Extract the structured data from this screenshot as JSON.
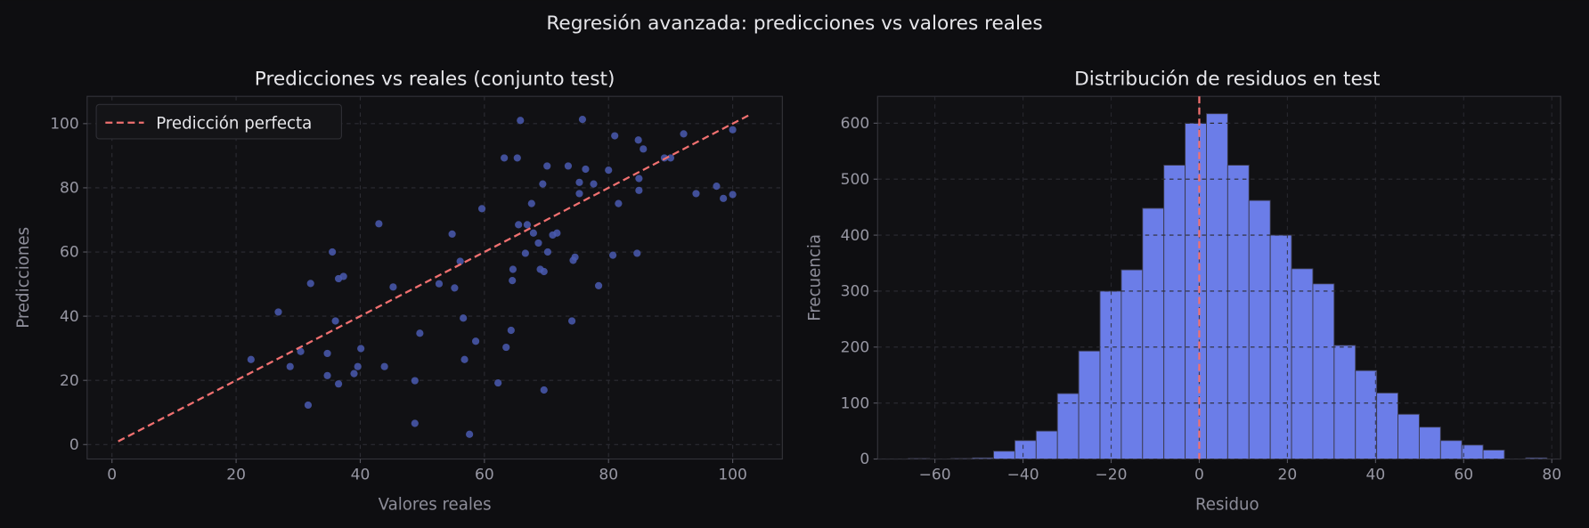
{
  "suptitle": "Regresión avanzada: predicciones vs valores reales",
  "colors": {
    "background": "#0e0e11",
    "axes": "#111114",
    "points": "#4a5bb0",
    "bars": "#6b7de8",
    "bar_edge": "#3b3b4d",
    "reference_line": "#f07070",
    "grid": "#2c2c33"
  },
  "chart_data": [
    {
      "type": "scatter",
      "title": "Predicciones vs reales (conjunto test)",
      "xlabel": "Valores reales",
      "ylabel": "Predicciones",
      "xlim": [
        -4,
        108
      ],
      "ylim": [
        -4.5,
        108.5
      ],
      "xticks": [
        "0",
        "20",
        "40",
        "60",
        "80",
        "100"
      ],
      "yticks": [
        "0",
        "20",
        "40",
        "60",
        "80",
        "100"
      ],
      "grid": true,
      "legend": {
        "placement": "top-left",
        "entries": [
          "Predicción perfecta"
        ]
      },
      "reference_line": {
        "name": "Predicción perfecta",
        "from": [
          1,
          1
        ],
        "to": [
          103,
          103
        ],
        "style": "dashed"
      },
      "points": [
        [
          22.4,
          26.5
        ],
        [
          26.8,
          41.3
        ],
        [
          28.7,
          24.3
        ],
        [
          30.4,
          29.0
        ],
        [
          31.6,
          12.3
        ],
        [
          32.0,
          50.2
        ],
        [
          34.7,
          21.5
        ],
        [
          34.7,
          28.4
        ],
        [
          35.5,
          60.0
        ],
        [
          36.0,
          38.5
        ],
        [
          36.5,
          51.7
        ],
        [
          37.3,
          52.4
        ],
        [
          36.5,
          18.9
        ],
        [
          39.0,
          22.1
        ],
        [
          40.1,
          29.9
        ],
        [
          39.6,
          24.3
        ],
        [
          43.0,
          68.8
        ],
        [
          43.9,
          24.3
        ],
        [
          45.3,
          49.1
        ],
        [
          48.8,
          19.9
        ],
        [
          48.8,
          6.6
        ],
        [
          49.6,
          34.7
        ],
        [
          52.7,
          50.1
        ],
        [
          54.8,
          65.6
        ],
        [
          55.2,
          48.8
        ],
        [
          56.1,
          57.1
        ],
        [
          56.6,
          39.4
        ],
        [
          56.8,
          26.5
        ],
        [
          57.6,
          3.2
        ],
        [
          58.6,
          32.2
        ],
        [
          59.6,
          73.5
        ],
        [
          62.2,
          19.2
        ],
        [
          63.2,
          89.3
        ],
        [
          63.5,
          30.3
        ],
        [
          64.3,
          35.6
        ],
        [
          64.5,
          51.1
        ],
        [
          64.6,
          54.6
        ],
        [
          65.3,
          89.3
        ],
        [
          65.5,
          68.5
        ],
        [
          65.8,
          101.0
        ],
        [
          66.6,
          59.6
        ],
        [
          66.9,
          68.5
        ],
        [
          67.6,
          75.1
        ],
        [
          67.9,
          65.9
        ],
        [
          68.7,
          62.8
        ],
        [
          69.0,
          54.6
        ],
        [
          69.4,
          81.2
        ],
        [
          69.6,
          53.9
        ],
        [
          69.6,
          17.0
        ],
        [
          70.1,
          86.8
        ],
        [
          70.2,
          60.0
        ],
        [
          71.0,
          65.3
        ],
        [
          71.7,
          65.9
        ],
        [
          73.5,
          86.8
        ],
        [
          74.1,
          38.5
        ],
        [
          74.3,
          57.4
        ],
        [
          74.6,
          58.4
        ],
        [
          75.3,
          78.2
        ],
        [
          75.3,
          81.7
        ],
        [
          75.8,
          101.3
        ],
        [
          76.3,
          85.8
        ],
        [
          77.6,
          81.2
        ],
        [
          78.4,
          49.5
        ],
        [
          80.0,
          85.5
        ],
        [
          80.7,
          59.0
        ],
        [
          81.0,
          96.2
        ],
        [
          81.6,
          75.1
        ],
        [
          84.6,
          59.6
        ],
        [
          84.8,
          94.9
        ],
        [
          84.9,
          82.9
        ],
        [
          84.9,
          79.2
        ],
        [
          85.6,
          92.1
        ],
        [
          89.0,
          89.3
        ],
        [
          90.0,
          89.3
        ],
        [
          92.1,
          96.8
        ],
        [
          94.1,
          78.2
        ],
        [
          97.4,
          80.5
        ],
        [
          98.5,
          76.7
        ],
        [
          100.0,
          98.1
        ],
        [
          100.0,
          77.9
        ]
      ]
    },
    {
      "type": "bar",
      "subtype": "histogram",
      "title": "Distribución de residuos en test",
      "xlabel": "Residuo",
      "ylabel": "Frecuencia",
      "xlim": [
        -73,
        82
      ],
      "ylim": [
        0,
        648
      ],
      "xticks": [
        "−60",
        "−40",
        "−20",
        "0",
        "20",
        "40",
        "60",
        "80"
      ],
      "yticks": [
        "0",
        "100",
        "200",
        "300",
        "400",
        "500",
        "600"
      ],
      "grid": true,
      "bin_start": -66,
      "bin_width": 4.83,
      "counts": [
        1,
        0,
        1,
        2,
        14,
        33,
        50,
        117,
        193,
        300,
        338,
        448,
        525,
        600,
        617,
        525,
        462,
        400,
        340,
        313,
        203,
        158,
        118,
        80,
        57,
        33,
        25,
        16,
        0,
        2
      ],
      "reference_line": {
        "x": 0,
        "style": "dashed"
      }
    }
  ]
}
